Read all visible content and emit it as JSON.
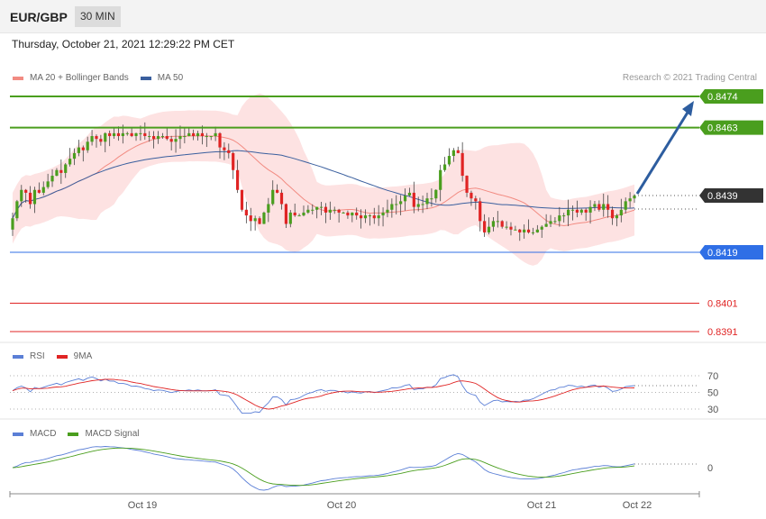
{
  "header": {
    "symbol": "EUR/GBP",
    "timeframe": "30 MIN"
  },
  "datetime": "Thursday, October 21, 2021 12:29:22 PM CET",
  "credit": "Research © 2021 Trading Central",
  "legend_main": [
    {
      "label": "MA 20 + Bollinger Bands",
      "color": "#f28b82"
    },
    {
      "label": "MA 50",
      "color": "#3a5f9e"
    }
  ],
  "legend_rsi": [
    {
      "label": "RSI",
      "color": "#5b7fd6"
    },
    {
      "label": "9MA",
      "color": "#e02424"
    }
  ],
  "legend_macd": [
    {
      "label": "MACD",
      "color": "#5b7fd6"
    },
    {
      "label": "MACD Signal",
      "color": "#4a9e1e"
    }
  ],
  "colors": {
    "resistance": "#4a9e1e",
    "support": "#2f6fe6",
    "target": "#e02424",
    "current": "#333333",
    "arrow": "#2d5d9f",
    "band": "#fde2e2",
    "up": "#4a9e1e",
    "down": "#e02424"
  },
  "chart_data": {
    "type": "candlestick",
    "x_ticks": [
      "Oct 19",
      "Oct 20",
      "Oct 21",
      "Oct 22"
    ],
    "price_levels": [
      {
        "value": 0.8474,
        "label": "0.8474",
        "kind": "resistance"
      },
      {
        "value": 0.8463,
        "label": "0.8463",
        "kind": "resistance"
      },
      {
        "value": 0.8439,
        "label": "0.8439",
        "kind": "current"
      },
      {
        "value": 0.8419,
        "label": "0.8419",
        "kind": "support"
      },
      {
        "value": 0.8401,
        "label": "0.8401",
        "kind": "target"
      },
      {
        "value": 0.8391,
        "label": "0.8391",
        "kind": "target"
      }
    ],
    "closes": [
      0.8431,
      0.8437,
      0.8441,
      0.844,
      0.8436,
      0.8441,
      0.844,
      0.8442,
      0.8444,
      0.8446,
      0.8448,
      0.8447,
      0.845,
      0.8452,
      0.8454,
      0.8456,
      0.8455,
      0.8458,
      0.846,
      0.8459,
      0.8458,
      0.8461,
      0.846,
      0.8461,
      0.846,
      0.8461,
      0.8461,
      0.846,
      0.8461,
      0.8461,
      0.846,
      0.846,
      0.8459,
      0.846,
      0.846,
      0.8459,
      0.8458,
      0.8459,
      0.846,
      0.846,
      0.8461,
      0.846,
      0.8461,
      0.846,
      0.846,
      0.846,
      0.8461,
      0.8456,
      0.8455,
      0.8454,
      0.8448,
      0.8441,
      0.8434,
      0.8432,
      0.843,
      0.8431,
      0.8429,
      0.8433,
      0.8436,
      0.8441,
      0.844,
      0.8436,
      0.8429,
      0.8433,
      0.8432,
      0.8432,
      0.8433,
      0.8434,
      0.8434,
      0.8435,
      0.8435,
      0.8433,
      0.8434,
      0.8434,
      0.8433,
      0.8433,
      0.8432,
      0.8433,
      0.8432,
      0.8431,
      0.8432,
      0.8432,
      0.8431,
      0.8432,
      0.8433,
      0.8434,
      0.8436,
      0.8436,
      0.8437,
      0.8439,
      0.844,
      0.8435,
      0.8436,
      0.8436,
      0.8438,
      0.8438,
      0.8441,
      0.8448,
      0.845,
      0.8453,
      0.8455,
      0.8454,
      0.8446,
      0.844,
      0.8438,
      0.8437,
      0.843,
      0.8426,
      0.8428,
      0.843,
      0.843,
      0.8428,
      0.8428,
      0.8427,
      0.8427,
      0.8426,
      0.8427,
      0.8426,
      0.8426,
      0.8427,
      0.8428,
      0.8429,
      0.843,
      0.843,
      0.8432,
      0.8432,
      0.8434,
      0.8434,
      0.8433,
      0.8434,
      0.8433,
      0.8435,
      0.8436,
      0.8434,
      0.8436,
      0.8434,
      0.8431,
      0.8432,
      0.8434,
      0.8437,
      0.8438,
      0.8439
    ]
  },
  "rsi": {
    "levels": [
      "70",
      "50",
      "30"
    ]
  },
  "macd": {
    "levels": [
      "0"
    ]
  }
}
